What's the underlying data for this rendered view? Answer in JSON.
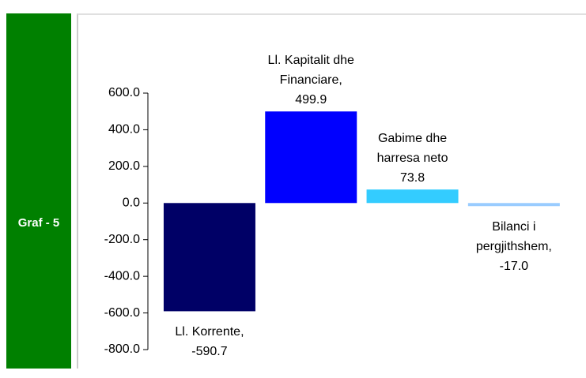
{
  "sidebar": {
    "label": "Graf - 5"
  },
  "chart_data": {
    "type": "bar",
    "categories": [
      "Ll. Korrente,",
      "Ll. Kapitalit dhe Financiare,",
      "Gabime dhe harresa neto",
      "Bilanci i pergjithshem,"
    ],
    "values": [
      -590.7,
      499.9,
      73.8,
      -17.0
    ],
    "value_labels": [
      "-590.7",
      "499.9",
      "73.8",
      "-17.0"
    ],
    "colors": [
      "#000066",
      "#0000ff",
      "#33ccff",
      "#99ccff"
    ],
    "ylim": [
      -800,
      600
    ],
    "yticks": [
      {
        "value": -800,
        "label": "-800.0"
      },
      {
        "value": -600,
        "label": "-600.0"
      },
      {
        "value": -400,
        "label": "-400.0"
      },
      {
        "value": -200,
        "label": "-200.0"
      },
      {
        "value": 0,
        "label": "0.0"
      },
      {
        "value": 200,
        "label": "200.0"
      },
      {
        "value": 400,
        "label": "400.0"
      },
      {
        "value": 600,
        "label": "600.0"
      }
    ],
    "grid": false
  }
}
